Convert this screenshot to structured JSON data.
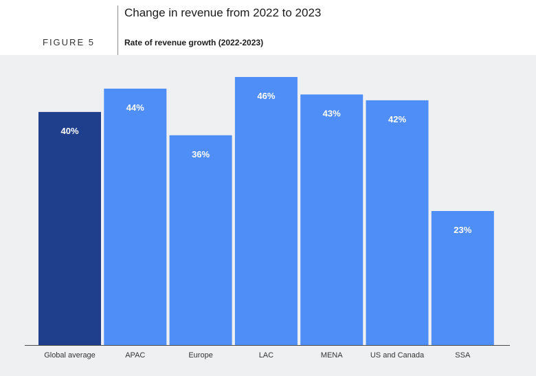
{
  "header": {
    "title": "Change in revenue from 2022 to 2023",
    "figure_label": "FIGURE 5",
    "subtitle": "Rate of revenue growth (2022-2023)"
  },
  "colors": {
    "highlight_bar": "#1f3f8c",
    "bar": "#4f8df7",
    "label_text": "#ffffff",
    "axis": "#4a4a4a",
    "background": "#eef0f2"
  },
  "chart_data": {
    "type": "bar",
    "title": "Change in revenue from 2022 to 2023",
    "subtitle": "Rate of revenue growth (2022-2023)",
    "categories": [
      "Global average",
      "APAC",
      "Europe",
      "LAC",
      "MENA",
      "US and Canada",
      "SSA"
    ],
    "values": [
      40,
      44,
      36,
      46,
      43,
      42,
      23
    ],
    "data_labels": [
      "40%",
      "44%",
      "36%",
      "46%",
      "43%",
      "42%",
      "23%"
    ],
    "highlighted_category": "Global average",
    "unit": "%",
    "ylim": [
      0,
      46
    ],
    "grid": false,
    "legend": "none"
  }
}
